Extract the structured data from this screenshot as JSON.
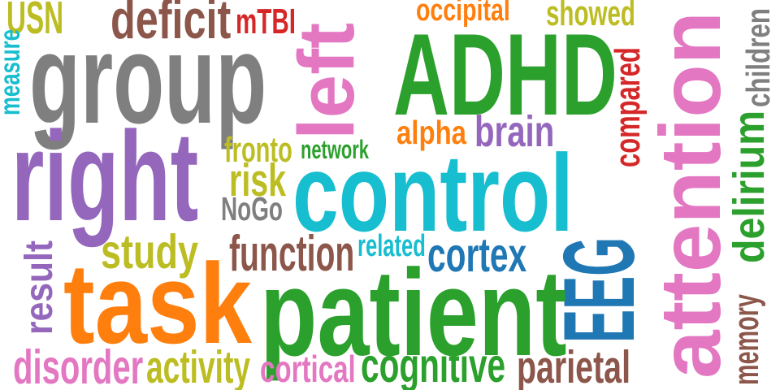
{
  "word_cloud": {
    "colors": {
      "olive": "#bcbd22",
      "brown": "#8c564b",
      "red": "#d62728",
      "gray": "#7f7f7f",
      "teal": "#17becf",
      "purple": "#9467bd",
      "pink": "#e377c2",
      "green": "#2ca02c",
      "orange": "#ff7f0e",
      "blue": "#1f77b4"
    },
    "words": [
      {
        "text": "USN",
        "color": "olive"
      },
      {
        "text": "deficit",
        "color": "brown"
      },
      {
        "text": "mTBI",
        "color": "red"
      },
      {
        "text": "occipital",
        "color": "orange"
      },
      {
        "text": "showed",
        "color": "olive"
      },
      {
        "text": "measure",
        "color": "teal"
      },
      {
        "text": "group",
        "color": "gray"
      },
      {
        "text": "left",
        "color": "pink"
      },
      {
        "text": "ADHD",
        "color": "green"
      },
      {
        "text": "attention",
        "color": "pink"
      },
      {
        "text": "children",
        "color": "gray"
      },
      {
        "text": "compared",
        "color": "red"
      },
      {
        "text": "delirium",
        "color": "green"
      },
      {
        "text": "alpha",
        "color": "orange"
      },
      {
        "text": "brain",
        "color": "purple"
      },
      {
        "text": "right",
        "color": "purple"
      },
      {
        "text": "fronto",
        "color": "olive"
      },
      {
        "text": "network",
        "color": "green"
      },
      {
        "text": "control",
        "color": "teal"
      },
      {
        "text": "risk",
        "color": "olive"
      },
      {
        "text": "NoGo",
        "color": "gray"
      },
      {
        "text": "study",
        "color": "olive"
      },
      {
        "text": "function",
        "color": "brown"
      },
      {
        "text": "related",
        "color": "teal"
      },
      {
        "text": "cortex",
        "color": "blue"
      },
      {
        "text": "EEG",
        "color": "blue"
      },
      {
        "text": "result",
        "color": "purple"
      },
      {
        "text": "task",
        "color": "orange"
      },
      {
        "text": "patient",
        "color": "green"
      },
      {
        "text": "memory",
        "color": "brown"
      },
      {
        "text": "disorder",
        "color": "pink"
      },
      {
        "text": "activity",
        "color": "olive"
      },
      {
        "text": "cortical",
        "color": "pink"
      },
      {
        "text": "cognitive",
        "color": "green"
      },
      {
        "text": "parietal",
        "color": "brown"
      }
    ]
  }
}
